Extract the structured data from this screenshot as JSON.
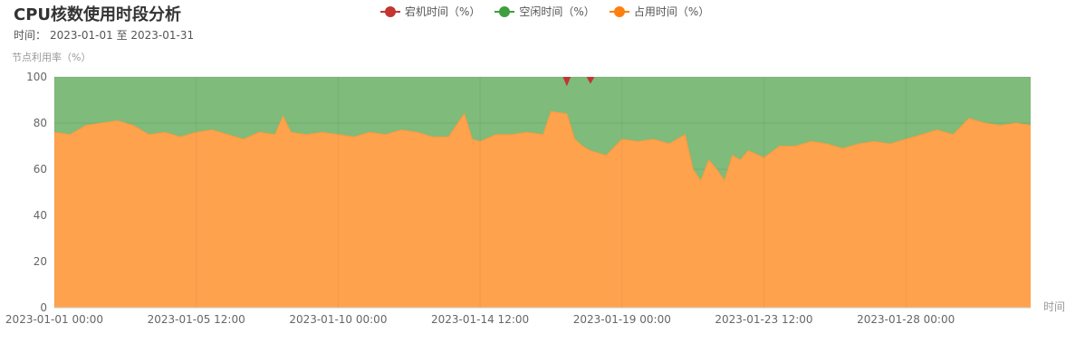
{
  "header": {
    "title": "CPU核数使用时段分析",
    "time_label": "时间：",
    "time_range": "2023-01-01 至 2023-01-31"
  },
  "chart_data": {
    "type": "area",
    "title": "CPU核数使用时段分析",
    "ylabel": "节点利用率（%）",
    "xlabel": "时间",
    "ylim": [
      0,
      100
    ],
    "y_ticks": [
      0,
      20,
      40,
      60,
      80,
      100
    ],
    "x_range": [
      "2023-01-01 00:00",
      "2023-01-31 23:00"
    ],
    "x_tick_labels": [
      "2023-01-01 00:00",
      "2023-01-05 12:00",
      "2023-01-10 00:00",
      "2023-01-14 12:00",
      "2023-01-19 00:00",
      "2023-01-23 12:00",
      "2023-01-28 00:00"
    ],
    "stacked": true,
    "legend_position": "top-center",
    "series": [
      {
        "name": "宕机时间（%）",
        "color": "#c23531",
        "values_note": "near zero, brief spikes around 2023-01-17 and 2023-01-18",
        "points": [
          [
            "2023-01-17 03:00",
            0
          ],
          [
            "2023-01-17 06:00",
            4
          ],
          [
            "2023-01-17 09:00",
            0
          ],
          [
            "2023-01-17 21:00",
            0
          ],
          [
            "2023-01-18 00:00",
            3
          ],
          [
            "2023-01-18 03:00",
            0
          ]
        ]
      },
      {
        "name": "空闲时间（%）",
        "color": "#3f9f3f",
        "fill": "#7fbb7a",
        "derived": "100 - 占用 - 宕机"
      },
      {
        "name": "占用时间（%）",
        "color": "#ff7f0e",
        "fill": "#ffa24d",
        "points": [
          [
            "2023-01-01 00:00",
            76
          ],
          [
            "2023-01-01 12:00",
            75
          ],
          [
            "2023-01-02 00:00",
            79
          ],
          [
            "2023-01-02 12:00",
            80
          ],
          [
            "2023-01-03 00:00",
            81
          ],
          [
            "2023-01-03 12:00",
            79
          ],
          [
            "2023-01-04 00:00",
            75
          ],
          [
            "2023-01-04 12:00",
            76
          ],
          [
            "2023-01-05 00:00",
            74
          ],
          [
            "2023-01-05 12:00",
            76
          ],
          [
            "2023-01-06 00:00",
            77
          ],
          [
            "2023-01-06 12:00",
            75
          ],
          [
            "2023-01-07 00:00",
            73
          ],
          [
            "2023-01-07 12:00",
            76
          ],
          [
            "2023-01-08 00:00",
            75
          ],
          [
            "2023-01-08 06:00",
            83
          ],
          [
            "2023-01-08 12:00",
            76
          ],
          [
            "2023-01-09 00:00",
            75
          ],
          [
            "2023-01-09 12:00",
            76
          ],
          [
            "2023-01-10 00:00",
            75
          ],
          [
            "2023-01-10 12:00",
            74
          ],
          [
            "2023-01-11 00:00",
            76
          ],
          [
            "2023-01-11 12:00",
            75
          ],
          [
            "2023-01-12 00:00",
            77
          ],
          [
            "2023-01-12 12:00",
            76
          ],
          [
            "2023-01-13 00:00",
            74
          ],
          [
            "2023-01-13 12:00",
            74
          ],
          [
            "2023-01-14 00:00",
            84
          ],
          [
            "2023-01-14 06:00",
            73
          ],
          [
            "2023-01-14 12:00",
            72
          ],
          [
            "2023-01-15 00:00",
            75
          ],
          [
            "2023-01-15 12:00",
            75
          ],
          [
            "2023-01-16 00:00",
            76
          ],
          [
            "2023-01-16 12:00",
            75
          ],
          [
            "2023-01-16 18:00",
            85
          ],
          [
            "2023-01-17 06:00",
            84
          ],
          [
            "2023-01-17 12:00",
            73
          ],
          [
            "2023-01-17 18:00",
            70
          ],
          [
            "2023-01-18 00:00",
            68
          ],
          [
            "2023-01-18 12:00",
            66
          ],
          [
            "2023-01-19 00:00",
            73
          ],
          [
            "2023-01-19 12:00",
            72
          ],
          [
            "2023-01-20 00:00",
            73
          ],
          [
            "2023-01-20 12:00",
            71
          ],
          [
            "2023-01-21 00:00",
            75
          ],
          [
            "2023-01-21 06:00",
            60
          ],
          [
            "2023-01-21 12:00",
            55
          ],
          [
            "2023-01-21 18:00",
            64
          ],
          [
            "2023-01-22 00:00",
            60
          ],
          [
            "2023-01-22 06:00",
            55
          ],
          [
            "2023-01-22 12:00",
            66
          ],
          [
            "2023-01-22 18:00",
            64
          ],
          [
            "2023-01-23 00:00",
            68
          ],
          [
            "2023-01-23 12:00",
            65
          ],
          [
            "2023-01-24 00:00",
            70
          ],
          [
            "2023-01-24 12:00",
            70
          ],
          [
            "2023-01-25 00:00",
            72
          ],
          [
            "2023-01-25 12:00",
            71
          ],
          [
            "2023-01-26 00:00",
            69
          ],
          [
            "2023-01-26 12:00",
            71
          ],
          [
            "2023-01-27 00:00",
            72
          ],
          [
            "2023-01-27 12:00",
            71
          ],
          [
            "2023-01-28 00:00",
            73
          ],
          [
            "2023-01-28 12:00",
            75
          ],
          [
            "2023-01-29 00:00",
            77
          ],
          [
            "2023-01-29 12:00",
            75
          ],
          [
            "2023-01-30 00:00",
            82
          ],
          [
            "2023-01-30 12:00",
            80
          ],
          [
            "2023-01-31 00:00",
            79
          ],
          [
            "2023-01-31 12:00",
            80
          ],
          [
            "2023-01-31 23:00",
            79
          ]
        ]
      }
    ]
  }
}
